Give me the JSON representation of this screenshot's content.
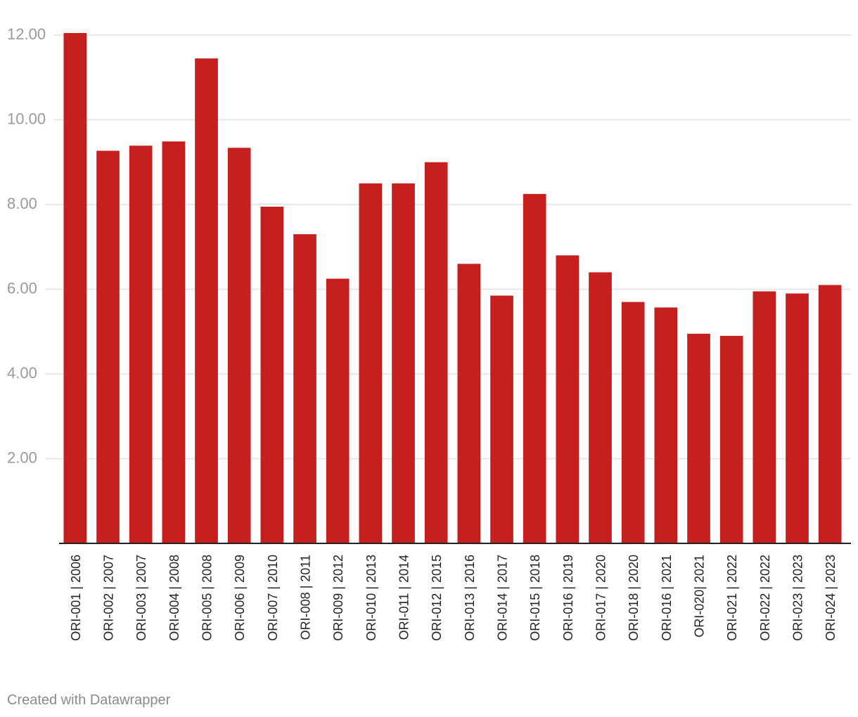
{
  "chart_data": {
    "type": "bar",
    "title": "",
    "xlabel": "",
    "ylabel": "",
    "ylim": [
      0,
      12
    ],
    "yticks": [
      "2.00",
      "4.00",
      "6.00",
      "8.00",
      "10.00",
      "12.00"
    ],
    "grid": true,
    "categories": [
      "ORI-001 | 2006",
      "ORI-002 | 2007",
      "ORI-003 | 2007",
      "ORI-004 | 2008",
      "ORI-005 | 2008",
      "ORI-006 | 2009",
      "ORI-007 | 2010",
      "ORI-008 | 2011",
      "ORI-009 | 2012",
      "ORI-010 | 2013",
      "ORI-011 | 2014",
      "ORI-012 | 2015",
      "ORI-013 | 2016",
      "ORI-014 | 2017",
      "ORI-015 | 2018",
      "ORI-016 | 2019",
      "ORI-017 | 2020",
      "ORI-018 | 2020",
      "ORI-016 | 2021",
      "ORI-020| 2021",
      "ORI-021 | 2022",
      "ORI-022 | 2022",
      "ORI-023 | 2023",
      "ORI-024 | 2023"
    ],
    "values": [
      12.05,
      9.27,
      9.39,
      9.49,
      11.45,
      9.34,
      7.95,
      7.3,
      6.25,
      8.5,
      8.5,
      9.0,
      6.6,
      5.85,
      8.25,
      6.8,
      6.4,
      5.7,
      5.57,
      4.95,
      4.9,
      5.95,
      5.9,
      6.1
    ],
    "bar_color": "#c71e1e",
    "gridline_color": "#e2e2e2",
    "axis_color": "#222222",
    "tick_label_color": "#9a9a9a",
    "category_label_color": "#222222"
  },
  "footer": {
    "credit": "Created with Datawrapper"
  }
}
